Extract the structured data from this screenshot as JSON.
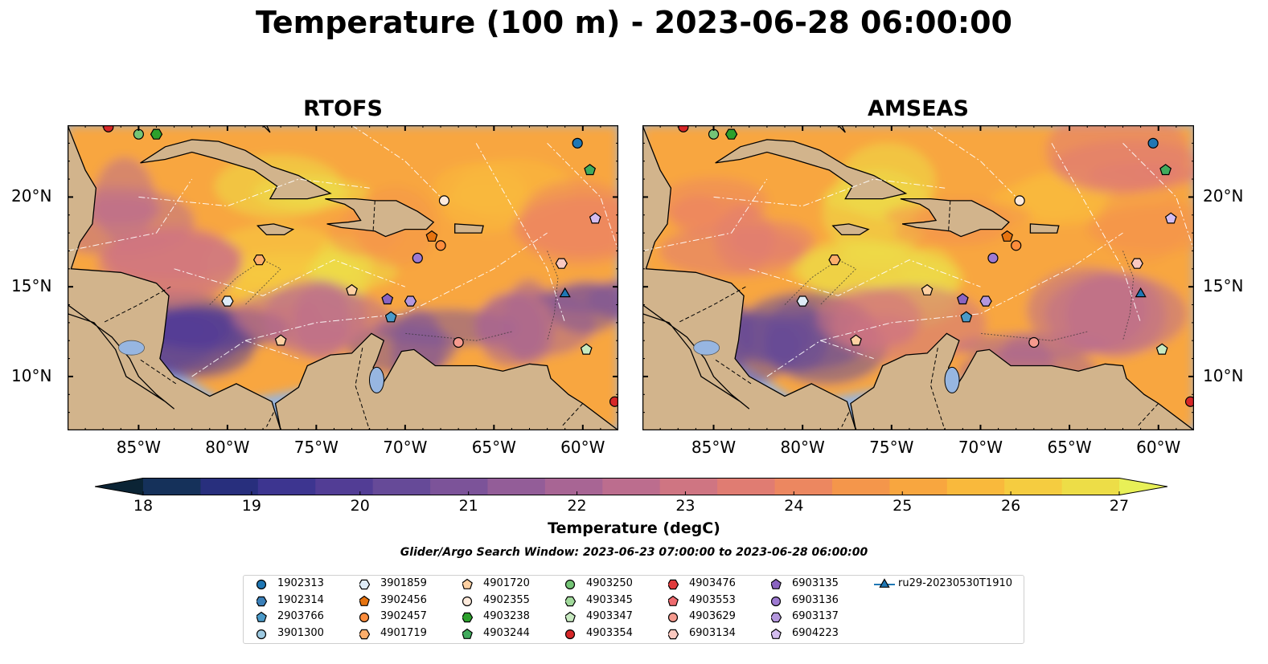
{
  "title": "Temperature (100 m) - 2023-06-28 06:00:00",
  "panels": [
    {
      "title": "RTOFS"
    },
    {
      "title": "AMSEAS"
    }
  ],
  "axes": {
    "lon_ticks": [
      "85°W",
      "80°W",
      "75°W",
      "70°W",
      "65°W",
      "60°W"
    ],
    "lat_ticks": [
      "20°N",
      "15°N",
      "10°N"
    ],
    "lon_range": [
      -89,
      -58
    ],
    "lat_range": [
      7,
      24
    ]
  },
  "colorbar": {
    "label": "Temperature (degC)",
    "ticks": [
      "18",
      "19",
      "20",
      "21",
      "22",
      "23",
      "24",
      "25",
      "26",
      "27"
    ],
    "range": [
      18,
      27
    ],
    "extend": "both",
    "colors": [
      "#0b2435",
      "#15315a",
      "#282f7d",
      "#3d3590",
      "#523d95",
      "#664a98",
      "#7c5399",
      "#935d98",
      "#a86594",
      "#bc6d8e",
      "#cf7582",
      "#e07c72",
      "#ec8760",
      "#f4964b",
      "#f8a63f",
      "#f9b93c",
      "#f5cc40",
      "#eddd47",
      "#e8f057"
    ]
  },
  "search_window": "Glider/Argo Search Window: 2023-06-23 07:00:00 to 2023-06-28 06:00:00",
  "colors": {
    "land": "#d2b48c",
    "water": "#97b6e1",
    "eez_lines": "#ffffff",
    "coast": "#000000"
  },
  "legend": [
    {
      "label": "1902313",
      "marker": "circle",
      "color": "#1f77b4"
    },
    {
      "label": "1902314",
      "marker": "hexagon",
      "color": "#3a7fb8"
    },
    {
      "label": "2903766",
      "marker": "pentagon",
      "color": "#4b9ac9"
    },
    {
      "label": "3901300",
      "marker": "circle",
      "color": "#9ecae1"
    },
    {
      "label": "3901859",
      "marker": "hexagon",
      "color": "#deebf7"
    },
    {
      "label": "3902456",
      "marker": "pentagon",
      "color": "#e6730f"
    },
    {
      "label": "3902457",
      "marker": "circle",
      "color": "#fd8d3c"
    },
    {
      "label": "4901719",
      "marker": "hexagon",
      "color": "#fdae6b"
    },
    {
      "label": "4901720",
      "marker": "pentagon",
      "color": "#fdd0a2"
    },
    {
      "label": "4902355",
      "marker": "circle",
      "color": "#feeadb"
    },
    {
      "label": "4903238",
      "marker": "hexagon",
      "color": "#2ca02c"
    },
    {
      "label": "4903244",
      "marker": "pentagon",
      "color": "#41ab5d"
    },
    {
      "label": "4903250",
      "marker": "circle",
      "color": "#74c476"
    },
    {
      "label": "4903345",
      "marker": "hexagon",
      "color": "#a1d99b"
    },
    {
      "label": "4903347",
      "marker": "pentagon",
      "color": "#c7e9c0"
    },
    {
      "label": "4903354",
      "marker": "circle",
      "color": "#d62728"
    },
    {
      "label": "4903476",
      "marker": "hexagon",
      "color": "#e03a3c"
    },
    {
      "label": "4903553",
      "marker": "pentagon",
      "color": "#ee6a6e"
    },
    {
      "label": "4903629",
      "marker": "circle",
      "color": "#f59a8e"
    },
    {
      "label": "6903134",
      "marker": "hexagon",
      "color": "#fbc9c0"
    },
    {
      "label": "6903135",
      "marker": "pentagon",
      "color": "#8a63c1"
    },
    {
      "label": "6903136",
      "marker": "circle",
      "color": "#9e7ad2"
    },
    {
      "label": "6903137",
      "marker": "hexagon",
      "color": "#b497dd"
    },
    {
      "label": "6904223",
      "marker": "pentagon",
      "color": "#d4bdf0"
    },
    {
      "label": "ru29-20230530T1910",
      "marker": "triangle-line",
      "color": "#1f77b4"
    }
  ],
  "floats": [
    {
      "label": "1902313",
      "lon": -60.3,
      "lat": 23.0
    },
    {
      "label": "4903244",
      "lon": -59.6,
      "lat": 21.5
    },
    {
      "label": "6904223",
      "lon": -59.3,
      "lat": 18.8
    },
    {
      "label": "4902355",
      "lon": -67.8,
      "lat": 19.8
    },
    {
      "label": "3902456",
      "lon": -68.5,
      "lat": 17.8
    },
    {
      "label": "3902457",
      "lon": -68.0,
      "lat": 17.3
    },
    {
      "label": "6903136",
      "lon": -69.3,
      "lat": 16.6
    },
    {
      "label": "4901719",
      "lon": -78.2,
      "lat": 16.5
    },
    {
      "label": "3901859",
      "lon": -80.0,
      "lat": 14.2
    },
    {
      "label": "4901720",
      "lon": -73.0,
      "lat": 14.8
    },
    {
      "label": "6903135",
      "lon": -71.0,
      "lat": 14.3
    },
    {
      "label": "6903137",
      "lon": -69.7,
      "lat": 14.2
    },
    {
      "label": "2903766",
      "lon": -70.8,
      "lat": 13.3
    },
    {
      "label": "4901720",
      "lon": -77.0,
      "lat": 12.0
    },
    {
      "label": "4903629",
      "lon": -67.0,
      "lat": 11.9
    },
    {
      "label": "4903347",
      "lon": -59.8,
      "lat": 11.5
    },
    {
      "label": "4903354",
      "lon": -58.2,
      "lat": 8.6
    },
    {
      "label": "4903250",
      "lon": -85.0,
      "lat": 23.5
    },
    {
      "label": "4903238",
      "lon": -84.0,
      "lat": 23.5
    },
    {
      "label": "4903354",
      "lon": -86.7,
      "lat": 23.9
    },
    {
      "label": "6903134",
      "lon": -61.2,
      "lat": 16.3
    },
    {
      "label": "ru29-20230530T1910",
      "lon": -61.0,
      "lat": 14.6
    }
  ]
}
